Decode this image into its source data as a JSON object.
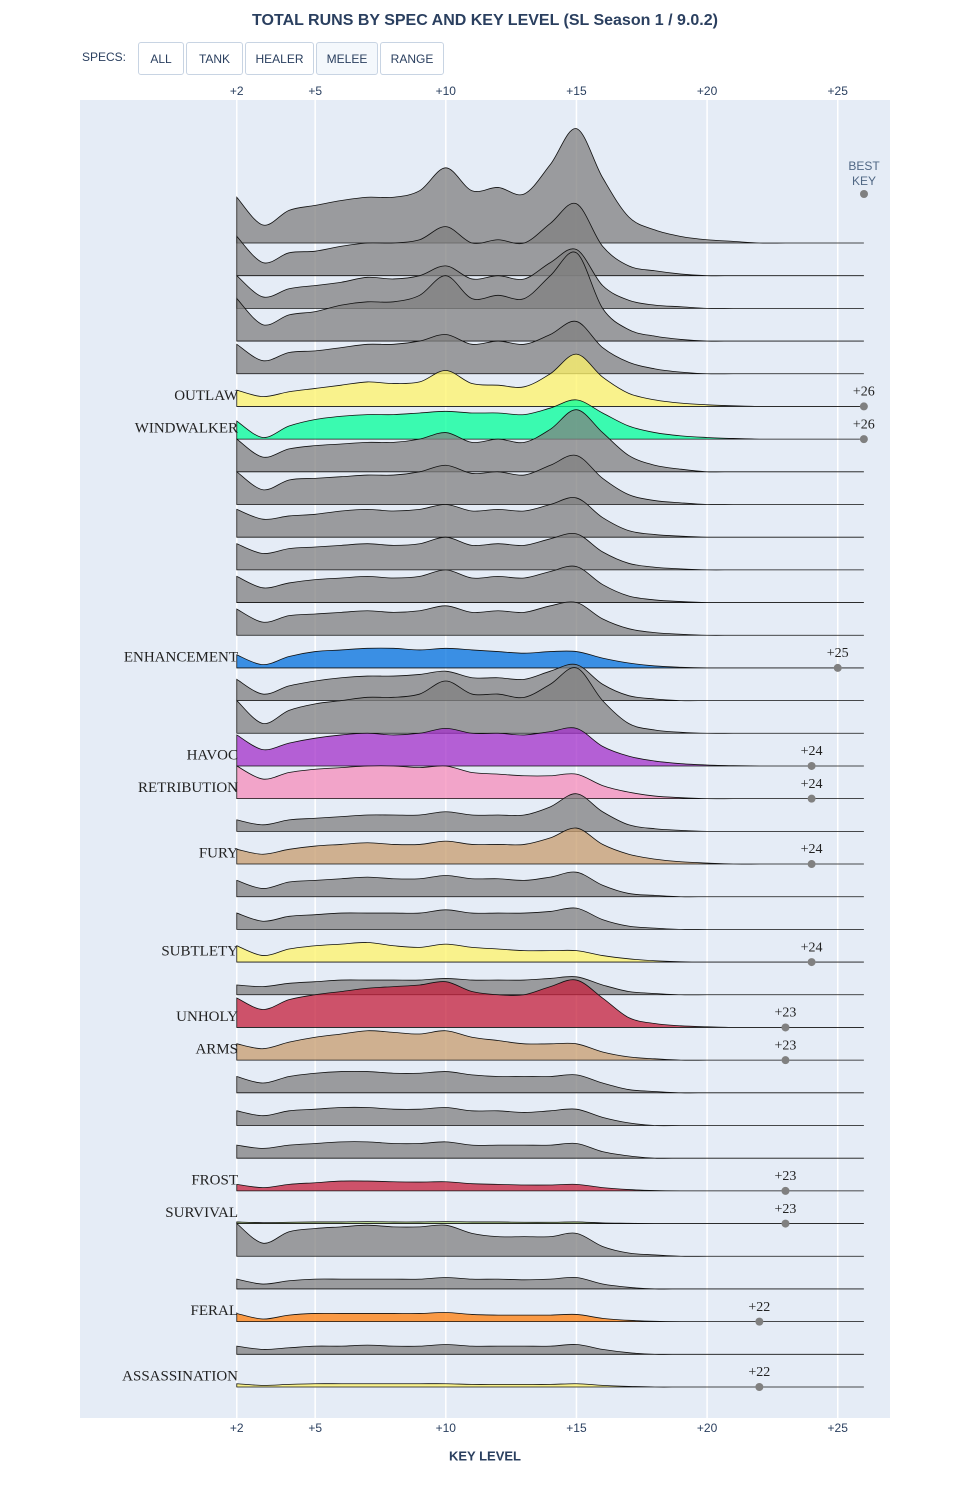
{
  "chart_data": {
    "type": "ridgeline",
    "title": "TOTAL RUNS BY SPEC AND KEY LEVEL (SL Season 1 / 9.0.2)",
    "x_label": "KEY LEVEL",
    "best_key_title": "BEST KEY",
    "menu": {
      "label": "SPECS:",
      "buttons": [
        "ALL",
        "TANK",
        "HEALER",
        "MELEE",
        "RANGE"
      ],
      "active": 3
    },
    "xlim": [
      -4,
      27
    ],
    "xticks": [
      {
        "value": 2,
        "label": "+2"
      },
      {
        "value": 5,
        "label": "+5"
      },
      {
        "value": 10,
        "label": "+10"
      },
      {
        "value": 15,
        "label": "+15"
      },
      {
        "value": 20,
        "label": "+20"
      },
      {
        "value": 25,
        "label": "+25"
      }
    ],
    "grid": true,
    "x": [
      2,
      3,
      4,
      5,
      6,
      7,
      8,
      9,
      10,
      11,
      12,
      13,
      14,
      15,
      16,
      17,
      18,
      19,
      20,
      21,
      22,
      23,
      24,
      25,
      26
    ],
    "series": [
      {
        "name": null,
        "color": "#808080",
        "values": [
          1.4,
          0.55,
          1.0,
          1.15,
          1.3,
          1.4,
          1.4,
          1.6,
          2.3,
          1.6,
          1.7,
          1.5,
          2.4,
          3.5,
          2.0,
          0.8,
          0.4,
          0.2,
          0.1,
          0.05,
          0,
          0,
          0,
          0,
          0
        ]
      },
      {
        "name": null,
        "color": "#808080",
        "values": [
          1.2,
          0.4,
          0.7,
          0.75,
          0.9,
          1.0,
          1.0,
          1.1,
          1.5,
          1.0,
          1.1,
          1.0,
          1.6,
          2.2,
          0.9,
          0.3,
          0.15,
          0.05,
          0,
          0,
          0,
          0,
          0,
          0,
          0
        ]
      },
      {
        "name": null,
        "color": "#808080",
        "values": [
          1.0,
          0.35,
          0.6,
          0.7,
          0.8,
          0.95,
          0.9,
          1.0,
          1.3,
          0.9,
          1.0,
          0.9,
          1.4,
          1.8,
          0.7,
          0.25,
          0.1,
          0.05,
          0,
          0,
          0,
          0,
          0,
          0,
          0
        ]
      },
      {
        "name": null,
        "color": "#808080",
        "values": [
          1.3,
          0.5,
          0.8,
          0.9,
          1.1,
          1.2,
          1.2,
          1.4,
          2.0,
          1.3,
          1.4,
          1.3,
          2.0,
          2.7,
          1.0,
          0.35,
          0.15,
          0.05,
          0,
          0,
          0,
          0,
          0,
          0,
          0
        ]
      },
      {
        "name": null,
        "color": "#808080",
        "values": [
          0.9,
          0.4,
          0.65,
          0.7,
          0.8,
          0.9,
          0.9,
          1.0,
          1.2,
          0.9,
          1.0,
          0.9,
          1.2,
          1.6,
          0.8,
          0.35,
          0.15,
          0.05,
          0,
          0,
          0,
          0,
          0,
          0,
          0
        ]
      },
      {
        "name": "OUTLAW",
        "color": "#fff468",
        "best_key": {
          "value": 26,
          "label": "+26"
        },
        "values": [
          0.5,
          0.3,
          0.45,
          0.55,
          0.65,
          0.75,
          0.7,
          0.75,
          1.1,
          0.7,
          0.65,
          0.6,
          1.0,
          1.6,
          0.9,
          0.4,
          0.2,
          0.1,
          0.05,
          0.02,
          0,
          0,
          0,
          0,
          0
        ]
      },
      {
        "name": "WINDWALKER",
        "color": "#00ff98",
        "best_key": {
          "value": 26,
          "label": "+26"
        },
        "values": [
          0.55,
          0.05,
          0.4,
          0.6,
          0.7,
          0.75,
          0.75,
          0.8,
          0.85,
          0.8,
          0.8,
          0.75,
          0.95,
          1.2,
          0.8,
          0.4,
          0.2,
          0.1,
          0.05,
          0.02,
          0,
          0,
          0,
          0,
          0
        ]
      },
      {
        "name": null,
        "color": "#808080",
        "values": [
          1.0,
          0.45,
          0.7,
          0.8,
          0.85,
          0.9,
          0.9,
          1.0,
          1.2,
          0.9,
          1.0,
          0.9,
          1.3,
          1.9,
          1.2,
          0.5,
          0.2,
          0.08,
          0,
          0,
          0,
          0,
          0,
          0,
          0
        ]
      },
      {
        "name": null,
        "color": "#808080",
        "values": [
          1.0,
          0.45,
          0.75,
          0.8,
          0.85,
          0.9,
          0.9,
          1.0,
          1.2,
          0.95,
          1.0,
          0.9,
          1.2,
          1.5,
          0.8,
          0.3,
          0.12,
          0.05,
          0,
          0,
          0,
          0,
          0,
          0,
          0
        ]
      },
      {
        "name": null,
        "color": "#808080",
        "values": [
          0.85,
          0.55,
          0.65,
          0.7,
          0.8,
          0.85,
          0.8,
          0.85,
          1.0,
          0.8,
          0.85,
          0.8,
          1.0,
          1.2,
          0.6,
          0.2,
          0.08,
          0.03,
          0,
          0,
          0,
          0,
          0,
          0,
          0
        ]
      },
      {
        "name": null,
        "color": "#808080",
        "values": [
          0.8,
          0.5,
          0.65,
          0.7,
          0.75,
          0.8,
          0.75,
          0.8,
          1.0,
          0.75,
          0.8,
          0.75,
          0.95,
          1.1,
          0.55,
          0.2,
          0.08,
          0.03,
          0,
          0,
          0,
          0,
          0,
          0,
          0
        ]
      },
      {
        "name": null,
        "color": "#808080",
        "values": [
          0.8,
          0.45,
          0.6,
          0.7,
          0.75,
          0.8,
          0.75,
          0.8,
          1.0,
          0.75,
          0.8,
          0.75,
          0.95,
          1.1,
          0.55,
          0.2,
          0.08,
          0.03,
          0,
          0,
          0,
          0,
          0,
          0,
          0
        ]
      },
      {
        "name": null,
        "color": "#808080",
        "values": [
          0.8,
          0.4,
          0.6,
          0.65,
          0.7,
          0.75,
          0.7,
          0.75,
          0.9,
          0.7,
          0.75,
          0.7,
          0.9,
          1.0,
          0.5,
          0.2,
          0.08,
          0.03,
          0,
          0,
          0,
          0,
          0,
          0,
          0
        ]
      },
      {
        "name": "ENHANCEMENT",
        "color": "#0070de",
        "best_key": {
          "value": 25,
          "label": "+25"
        },
        "values": [
          0.4,
          0.1,
          0.35,
          0.5,
          0.55,
          0.6,
          0.6,
          0.55,
          0.6,
          0.55,
          0.5,
          0.45,
          0.5,
          0.5,
          0.3,
          0.15,
          0.06,
          0.02,
          0,
          0,
          0,
          0,
          0,
          0,
          0
        ]
      },
      {
        "name": null,
        "color": "#808080",
        "values": [
          0.65,
          0.2,
          0.45,
          0.6,
          0.7,
          0.75,
          0.75,
          0.8,
          0.9,
          0.7,
          0.7,
          0.65,
          0.9,
          1.1,
          0.5,
          0.15,
          0.05,
          0,
          0,
          0,
          0,
          0,
          0,
          0,
          0
        ]
      },
      {
        "name": null,
        "color": "#808080",
        "values": [
          1.0,
          0.3,
          0.7,
          0.9,
          1.0,
          1.1,
          1.1,
          1.2,
          1.6,
          1.2,
          1.2,
          1.1,
          1.5,
          2.0,
          1.0,
          0.3,
          0.1,
          0.03,
          0,
          0,
          0,
          0,
          0,
          0,
          0
        ]
      },
      {
        "name": "HAVOC",
        "color": "#a330c9",
        "best_key": {
          "value": 24,
          "label": "+24"
        },
        "values": [
          0.95,
          0.5,
          0.7,
          0.85,
          0.95,
          1.0,
          0.95,
          1.0,
          1.15,
          1.0,
          1.0,
          0.95,
          1.05,
          1.15,
          0.6,
          0.3,
          0.15,
          0.07,
          0.03,
          0.01,
          0,
          0,
          0,
          0,
          0
        ]
      },
      {
        "name": "RETRIBUTION",
        "color": "#f58cba",
        "best_key": {
          "value": 24,
          "label": "+24"
        },
        "values": [
          1.0,
          0.6,
          0.8,
          0.9,
          0.95,
          1.0,
          1.0,
          0.95,
          1.0,
          0.8,
          0.75,
          0.7,
          0.7,
          0.75,
          0.4,
          0.2,
          0.08,
          0.03,
          0,
          0,
          0,
          0,
          0,
          0,
          0
        ]
      },
      {
        "name": null,
        "color": "#808080",
        "values": [
          0.35,
          0.2,
          0.35,
          0.4,
          0.45,
          0.5,
          0.5,
          0.5,
          0.6,
          0.5,
          0.5,
          0.5,
          0.75,
          1.15,
          0.6,
          0.2,
          0.08,
          0.03,
          0,
          0,
          0,
          0,
          0,
          0,
          0
        ]
      },
      {
        "name": "FURY",
        "color": "#c79c6e",
        "best_key": {
          "value": 24,
          "label": "+24"
        },
        "values": [
          0.45,
          0.3,
          0.45,
          0.55,
          0.6,
          0.65,
          0.6,
          0.6,
          0.7,
          0.6,
          0.6,
          0.6,
          0.8,
          1.1,
          0.6,
          0.3,
          0.15,
          0.07,
          0.03,
          0,
          0,
          0,
          0,
          0,
          0
        ]
      },
      {
        "name": null,
        "color": "#808080",
        "values": [
          0.5,
          0.25,
          0.45,
          0.5,
          0.55,
          0.6,
          0.55,
          0.55,
          0.65,
          0.55,
          0.55,
          0.5,
          0.6,
          0.75,
          0.35,
          0.1,
          0.04,
          0,
          0,
          0,
          0,
          0,
          0,
          0,
          0
        ]
      },
      {
        "name": null,
        "color": "#808080",
        "values": [
          0.5,
          0.25,
          0.4,
          0.45,
          0.5,
          0.5,
          0.5,
          0.5,
          0.6,
          0.5,
          0.5,
          0.5,
          0.55,
          0.65,
          0.3,
          0.1,
          0.04,
          0,
          0,
          0,
          0,
          0,
          0,
          0,
          0
        ]
      },
      {
        "name": "SUBTLETY",
        "color": "#fff468",
        "best_key": {
          "value": 24,
          "label": "+24"
        },
        "values": [
          0.5,
          0.2,
          0.4,
          0.5,
          0.55,
          0.6,
          0.5,
          0.45,
          0.55,
          0.45,
          0.4,
          0.35,
          0.35,
          0.35,
          0.2,
          0.1,
          0.04,
          0.01,
          0,
          0,
          0,
          0,
          0,
          0,
          0
        ]
      },
      {
        "name": null,
        "color": "#808080",
        "values": [
          0.3,
          0.25,
          0.35,
          0.4,
          0.45,
          0.45,
          0.45,
          0.45,
          0.5,
          0.45,
          0.45,
          0.45,
          0.5,
          0.55,
          0.3,
          0.1,
          0.04,
          0,
          0,
          0,
          0,
          0,
          0,
          0,
          0
        ]
      },
      {
        "name": "UNHOLY",
        "color": "#c41f3b",
        "best_key": {
          "value": 23,
          "label": "+23"
        },
        "values": [
          0.9,
          0.55,
          0.85,
          1.0,
          1.1,
          1.2,
          1.25,
          1.3,
          1.4,
          1.1,
          1.0,
          1.0,
          1.25,
          1.45,
          0.9,
          0.3,
          0.12,
          0.05,
          0.02,
          0,
          0,
          0,
          0,
          0,
          0
        ]
      },
      {
        "name": "ARMS",
        "color": "#c79c6e",
        "best_key": {
          "value": 23,
          "label": "+23"
        },
        "values": [
          0.5,
          0.35,
          0.55,
          0.7,
          0.8,
          0.9,
          0.85,
          0.8,
          0.9,
          0.7,
          0.6,
          0.5,
          0.5,
          0.5,
          0.25,
          0.1,
          0.04,
          0,
          0,
          0,
          0,
          0,
          0,
          0,
          0
        ]
      },
      {
        "name": null,
        "color": "#808080",
        "values": [
          0.5,
          0.3,
          0.5,
          0.6,
          0.65,
          0.65,
          0.6,
          0.6,
          0.65,
          0.55,
          0.5,
          0.5,
          0.5,
          0.55,
          0.3,
          0.1,
          0.04,
          0,
          0,
          0,
          0,
          0,
          0,
          0,
          0
        ]
      },
      {
        "name": null,
        "color": "#808080",
        "values": [
          0.45,
          0.3,
          0.45,
          0.5,
          0.55,
          0.55,
          0.5,
          0.5,
          0.55,
          0.45,
          0.45,
          0.4,
          0.45,
          0.5,
          0.25,
          0.08,
          0,
          0,
          0,
          0,
          0,
          0,
          0,
          0,
          0
        ]
      },
      {
        "name": null,
        "color": "#808080",
        "values": [
          0.4,
          0.3,
          0.4,
          0.45,
          0.5,
          0.5,
          0.45,
          0.45,
          0.5,
          0.4,
          0.4,
          0.4,
          0.4,
          0.45,
          0.2,
          0.07,
          0,
          0,
          0,
          0,
          0,
          0,
          0,
          0,
          0
        ]
      },
      {
        "name": "FROST",
        "color": "#c41f3b",
        "best_key": {
          "value": 23,
          "label": "+23"
        },
        "values": [
          0.2,
          0.1,
          0.2,
          0.25,
          0.3,
          0.3,
          0.28,
          0.27,
          0.28,
          0.22,
          0.2,
          0.18,
          0.18,
          0.2,
          0.1,
          0.04,
          0.01,
          0,
          0,
          0,
          0,
          0,
          0,
          0,
          0
        ]
      },
      {
        "name": "SURVIVAL",
        "color": "#abd473",
        "best_key": {
          "value": 23,
          "label": "+23"
        },
        "values": [
          0.05,
          0.03,
          0.04,
          0.05,
          0.05,
          0.06,
          0.05,
          0.05,
          0.06,
          0.05,
          0.05,
          0.04,
          0.04,
          0.05,
          0.02,
          0.01,
          0,
          0,
          0,
          0,
          0,
          0,
          0,
          0,
          0
        ]
      },
      {
        "name": null,
        "color": "#808080",
        "values": [
          1.0,
          0.4,
          0.75,
          0.85,
          0.9,
          0.95,
          0.9,
          0.9,
          0.95,
          0.7,
          0.6,
          0.6,
          0.6,
          0.7,
          0.3,
          0.1,
          0.04,
          0,
          0,
          0,
          0,
          0,
          0,
          0,
          0
        ]
      },
      {
        "name": null,
        "color": "#808080",
        "values": [
          0.3,
          0.15,
          0.25,
          0.3,
          0.3,
          0.3,
          0.3,
          0.3,
          0.35,
          0.3,
          0.3,
          0.28,
          0.3,
          0.35,
          0.15,
          0.05,
          0,
          0,
          0,
          0,
          0,
          0,
          0,
          0,
          0
        ]
      },
      {
        "name": "FERAL",
        "color": "#ff7d0a",
        "best_key": {
          "value": 22,
          "label": "+22"
        },
        "values": [
          0.25,
          0.08,
          0.2,
          0.25,
          0.25,
          0.25,
          0.25,
          0.25,
          0.28,
          0.22,
          0.2,
          0.2,
          0.2,
          0.22,
          0.1,
          0.04,
          0.01,
          0,
          0,
          0,
          0,
          0,
          0,
          0,
          0
        ]
      },
      {
        "name": null,
        "color": "#808080",
        "values": [
          0.25,
          0.15,
          0.2,
          0.25,
          0.25,
          0.28,
          0.25,
          0.25,
          0.3,
          0.25,
          0.25,
          0.25,
          0.25,
          0.3,
          0.15,
          0.05,
          0,
          0,
          0,
          0,
          0,
          0,
          0,
          0,
          0
        ]
      },
      {
        "name": "ASSASSINATION",
        "color": "#fff468",
        "best_key": {
          "value": 22,
          "label": "+22"
        },
        "values": [
          0.1,
          0.05,
          0.08,
          0.1,
          0.1,
          0.1,
          0.1,
          0.1,
          0.1,
          0.08,
          0.08,
          0.08,
          0.08,
          0.1,
          0.05,
          0.02,
          0,
          0,
          0,
          0,
          0,
          0,
          0,
          0,
          0
        ]
      }
    ]
  }
}
